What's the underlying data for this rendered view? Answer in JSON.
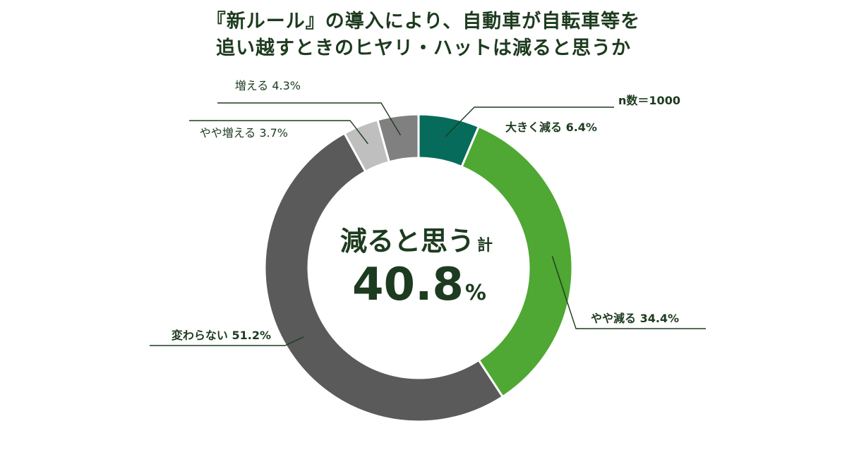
{
  "chart_data": {
    "type": "pie",
    "title": [
      "『新ルール』の導入により、自動車が自転車等を",
      "追い越すときのヒヤリ・ハットは減ると思うか"
    ],
    "sample_note": "n数＝1000",
    "center": {
      "label": "減ると思う",
      "label_suffix": "計",
      "value": "40.8",
      "unit": "%"
    },
    "slices": [
      {
        "label": "大きく減る 6.4%",
        "name": "大きく減る",
        "value": 6.4,
        "color": "#076b5c",
        "label_bold": true
      },
      {
        "label": "やや減る 34.4%",
        "name": "やや減る",
        "value": 34.4,
        "color": "#4ea833",
        "label_bold": true
      },
      {
        "label": "変わらない 51.2%",
        "name": "変わらない",
        "value": 51.2,
        "color": "#5a5a5a",
        "label_bold": true
      },
      {
        "label": "やや増える 3.7%",
        "name": "やや増える",
        "value": 3.7,
        "color": "#bfbfbf",
        "label_bold": false
      },
      {
        "label": "増える 4.3%",
        "name": "増える",
        "value": 4.3,
        "color": "#808080",
        "label_bold": false
      }
    ]
  }
}
